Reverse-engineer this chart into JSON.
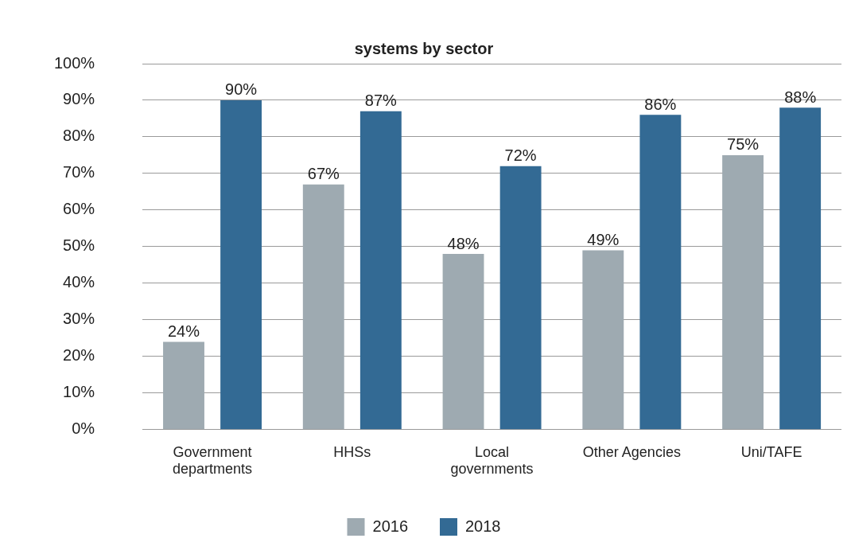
{
  "chart_data": {
    "type": "bar",
    "title": "systems by sector",
    "categories": [
      [
        "Government",
        "departments"
      ],
      "HHSs",
      [
        "Local",
        "governments"
      ],
      "Other Agencies",
      "Uni/TAFE"
    ],
    "series": [
      {
        "name": "2016",
        "color": "#9eaab1",
        "values": [
          24,
          67,
          48,
          49,
          75
        ],
        "value_labels": [
          "24%",
          "67%",
          "48%",
          "49%",
          "75%"
        ]
      },
      {
        "name": "2018",
        "color": "#336a94",
        "values": [
          90,
          87,
          72,
          86,
          88
        ],
        "value_labels": [
          "90%",
          "87%",
          "72%",
          "86%",
          "88%"
        ]
      }
    ],
    "ylim": [
      0,
      100
    ],
    "yticks": [
      {
        "value": 0,
        "label": "0%"
      },
      {
        "value": 10,
        "label": "10%"
      },
      {
        "value": 20,
        "label": "20%"
      },
      {
        "value": 30,
        "label": "30%"
      },
      {
        "value": 40,
        "label": "40%"
      },
      {
        "value": 50,
        "label": "50%"
      },
      {
        "value": 60,
        "label": "60%"
      },
      {
        "value": 70,
        "label": "70%"
      },
      {
        "value": 80,
        "label": "80%"
      },
      {
        "value": 90,
        "label": "90%"
      },
      {
        "value": 100,
        "label": "100%"
      }
    ],
    "grid": "y",
    "legend": "bottom"
  }
}
